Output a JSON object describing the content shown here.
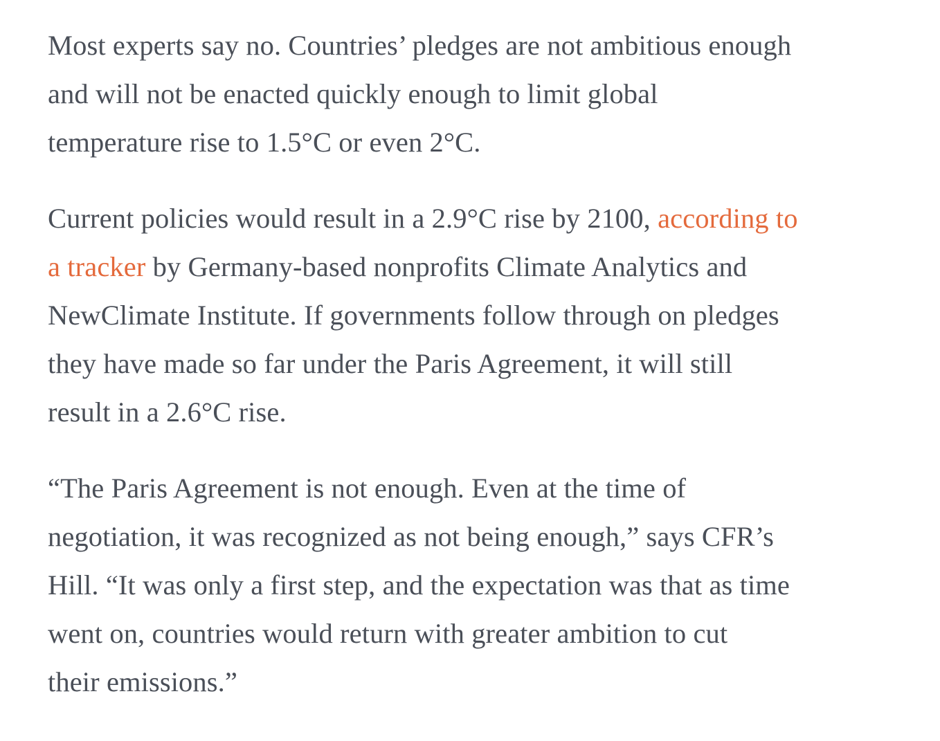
{
  "article": {
    "paragraphs": [
      {
        "lines": [
          "Most experts say no. Countries’ pledges are not ambitious enough",
          "and will not be enacted quickly enough to limit global",
          "temperature rise to 1.5°C or even 2°C."
        ]
      },
      {
        "line1_before": "Current policies would result in a 2.9°C rise by 2100, ",
        "link_part1": "according to",
        "link_part2": "a tracker",
        "line2_after": " by Germany-based nonprofits Climate Analytics and",
        "lines_rest": [
          "NewClimate Institute. If governments follow through on pledges",
          "they have made so far under the Paris Agreement, it will still",
          "result in a 2.6°C rise."
        ]
      },
      {
        "lines": [
          "“The Paris Agreement is not enough. Even at the time of",
          "negotiation, it was recognized as not being enough,” says CFR’s",
          "Hill. “It was only a first step, and the expectation was that as time",
          "went on, countries would return with greater ambition to cut",
          "their emissions.”"
        ]
      }
    ]
  },
  "colors": {
    "text": "#4a4f58",
    "link": "#e46a3c",
    "background": "#ffffff"
  }
}
